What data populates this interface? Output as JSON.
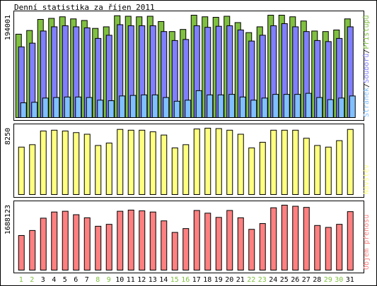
{
  "chart_data": {
    "type": "bar",
    "title": "Denní statistika za říjen 2011",
    "categories": [
      "1",
      "2",
      "3",
      "4",
      "5",
      "6",
      "7",
      "8",
      "9",
      "10",
      "11",
      "12",
      "13",
      "14",
      "15",
      "16",
      "17",
      "18",
      "19",
      "20",
      "21",
      "22",
      "23",
      "24",
      "25",
      "26",
      "27",
      "28",
      "29",
      "30",
      "31"
    ],
    "weekend_days": [
      "1",
      "2",
      "8",
      "9",
      "15",
      "16",
      "22",
      "23",
      "29",
      "30"
    ],
    "panels": [
      {
        "id": "hits",
        "scale_label": "194001",
        "legend": {
          "parts": [
            "Stránek",
            "Souborů",
            "Přístupů"
          ],
          "separator": "/"
        },
        "series": [
          {
            "name": "Přístupů",
            "color": "#80c040",
            "values": [
              158000,
              165000,
              186000,
              188000,
              191000,
              187000,
              184000,
              169000,
              172000,
              193000,
              192000,
              191000,
              192000,
              182000,
              163000,
              167000,
              194001,
              191000,
              190000,
              192000,
              180000,
              161000,
              172000,
              194001,
              194001,
              191000,
              183000,
              164000,
              163000,
              166000,
              187000
            ]
          },
          {
            "name": "Souborů",
            "color": "#8080ff",
            "values": [
              134000,
              141000,
              164000,
              172000,
              174000,
              172000,
              170000,
              150000,
              156000,
              176000,
              174000,
              174000,
              174000,
              163000,
              146000,
              148000,
              174000,
              171000,
              173000,
              174000,
              166000,
              145000,
              156000,
              174000,
              178000,
              172000,
              163000,
              146000,
              144000,
              150000,
              172000
            ]
          },
          {
            "name": "Stránek",
            "color": "#80c0ff",
            "values": [
              28000,
              29000,
              37000,
              38000,
              39000,
              39000,
              38000,
              33000,
              32000,
              41000,
              42000,
              43000,
              43000,
              38000,
              31000,
              33000,
              51000,
              43000,
              43000,
              44000,
              39000,
              33000,
              37000,
              44000,
              44000,
              44000,
              46000,
              38000,
              34000,
              37000,
              41000
            ]
          }
        ]
      },
      {
        "id": "visits",
        "scale_label": "8250",
        "legend": {
          "parts": [
            "Návštěv"
          ],
          "separator": ""
        },
        "series": [
          {
            "name": "Návštěv",
            "color": "#ffff80",
            "values": [
              5900,
              6200,
              7900,
              8000,
              7900,
              7700,
              7500,
              6100,
              6400,
              8100,
              8000,
              8000,
              7800,
              7400,
              5800,
              6200,
              8150,
              8250,
              8200,
              8000,
              7500,
              5800,
              6500,
              8000,
              8000,
              8000,
              7000,
              6100,
              5900,
              6700,
              8100
            ]
          }
        ]
      },
      {
        "id": "volume",
        "scale_label": "1688123",
        "legend": {
          "parts": [
            "Objem přenosu"
          ],
          "separator": ""
        },
        "series": [
          {
            "name": "Objem přenosu",
            "color": "#ff8080",
            "values": [
              900000,
              1030000,
              1350000,
              1510000,
              1530000,
              1440000,
              1360000,
              1140000,
              1190000,
              1530000,
              1560000,
              1540000,
              1510000,
              1280000,
              980000,
              1080000,
              1550000,
              1480000,
              1370000,
              1550000,
              1360000,
              1060000,
              1210000,
              1620000,
              1688123,
              1660000,
              1630000,
              1160000,
              1110000,
              1190000,
              1520000
            ]
          }
        ]
      }
    ]
  },
  "colors": {
    "weekday_label": "#000000",
    "weekend_label": "#80c040",
    "frame": "#000000",
    "panel_border": "#000000"
  }
}
